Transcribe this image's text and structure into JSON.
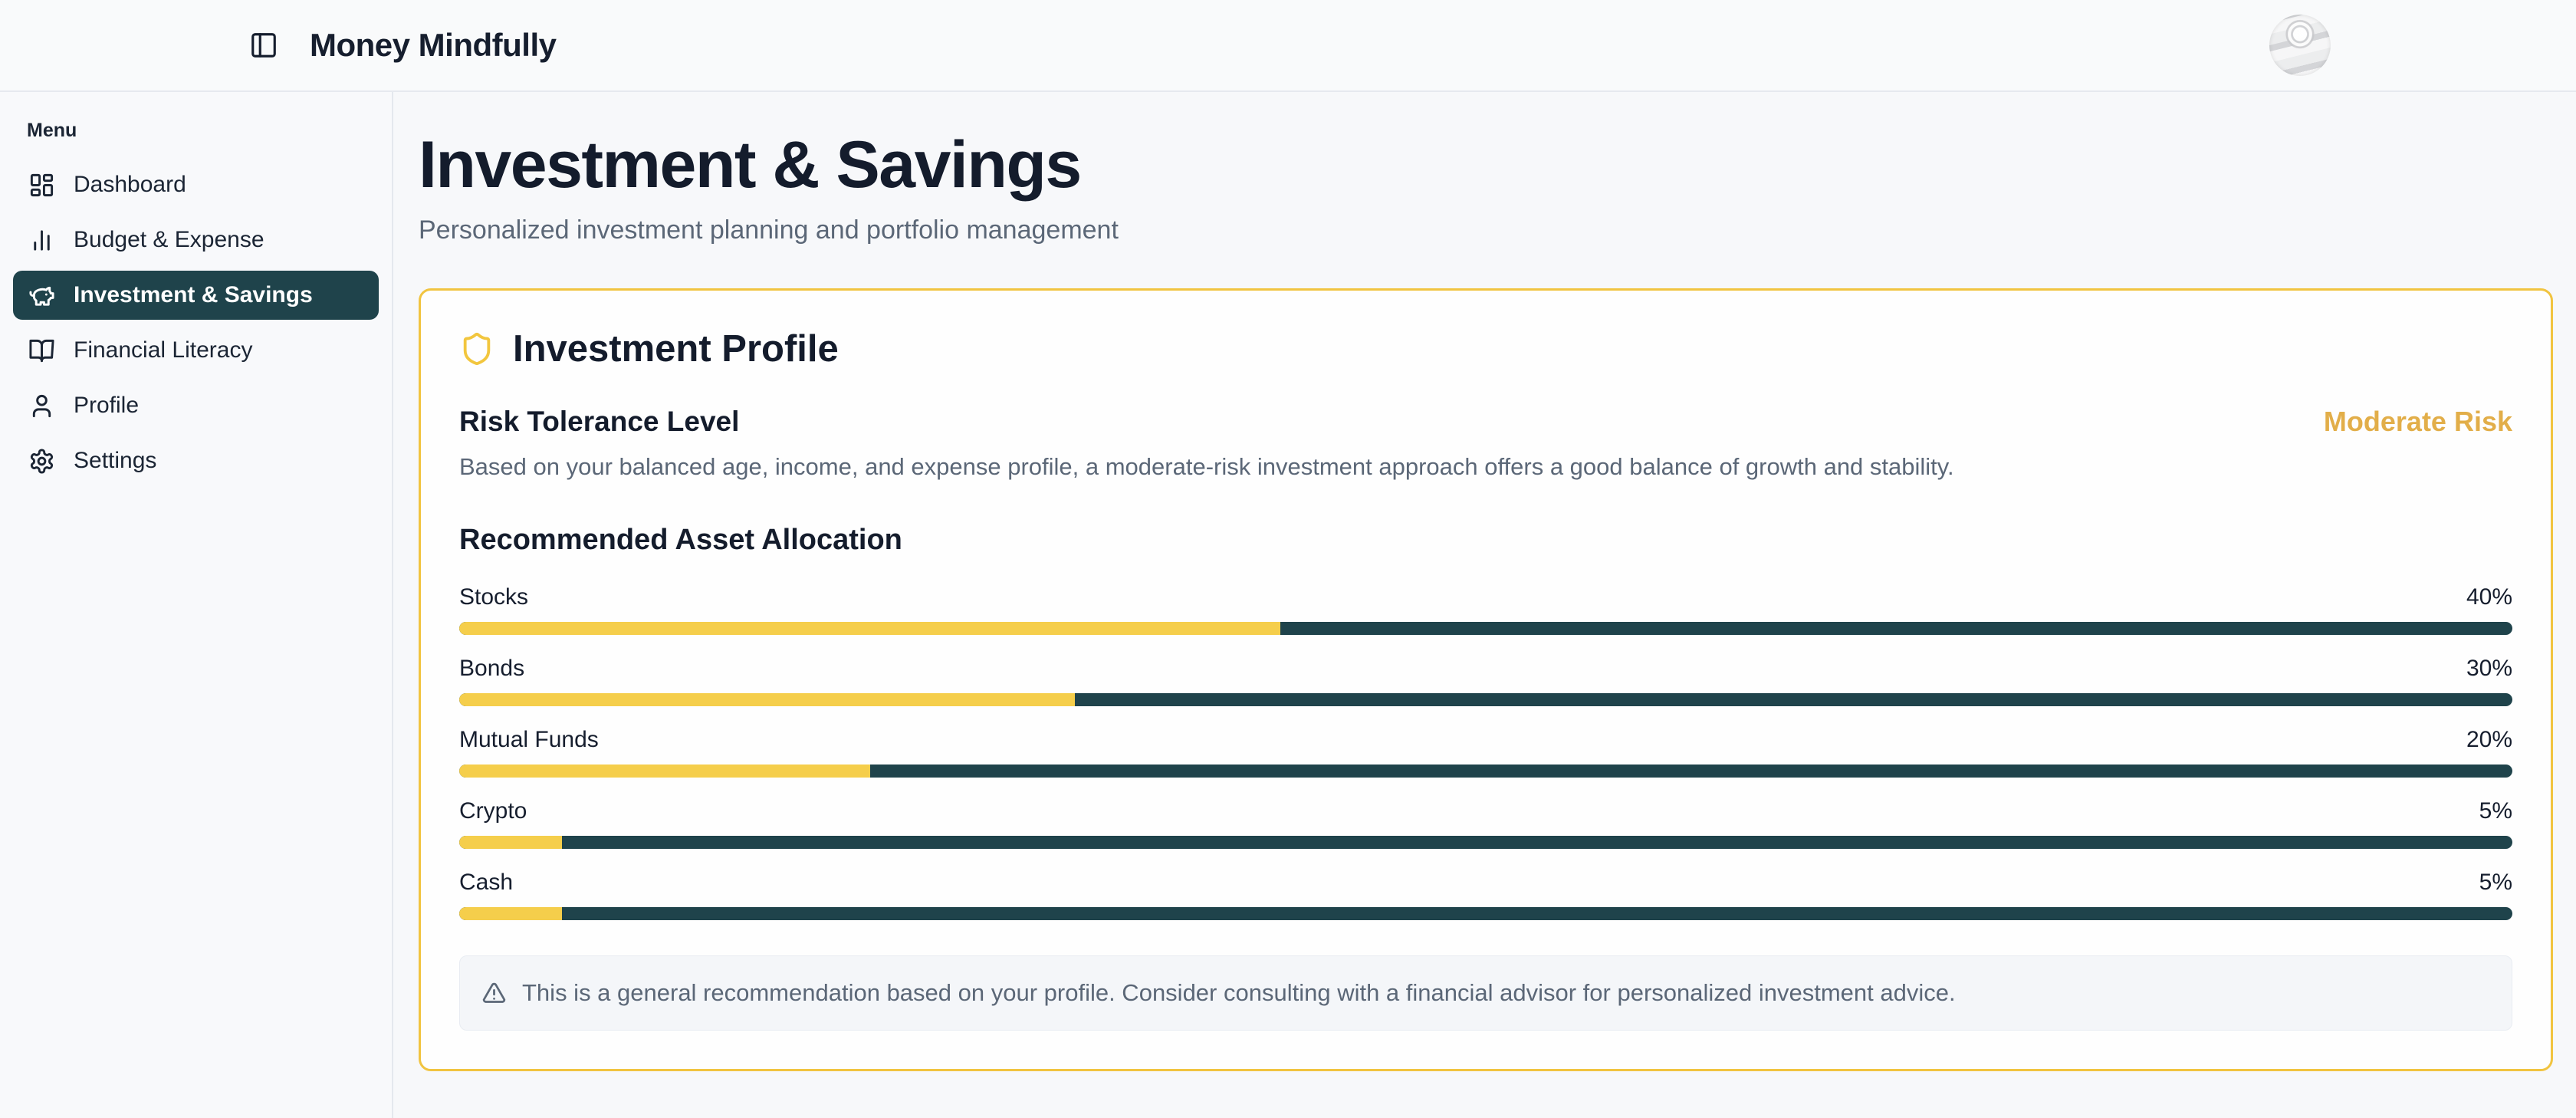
{
  "header": {
    "title": "Money Mindfully",
    "toggle_icon": "panel-left-icon",
    "avatar": "globe-building-photo"
  },
  "sidebar": {
    "menu_label": "Menu",
    "items": [
      {
        "label": "Dashboard",
        "icon": "dashboard-grid-icon",
        "active": false
      },
      {
        "label": "Budget & Expense",
        "icon": "bar-chart-icon",
        "active": false
      },
      {
        "label": "Investment & Savings",
        "icon": "piggy-bank-icon",
        "active": true
      },
      {
        "label": "Financial Literacy",
        "icon": "book-open-icon",
        "active": false
      },
      {
        "label": "Profile",
        "icon": "user-icon",
        "active": false
      },
      {
        "label": "Settings",
        "icon": "gear-icon",
        "active": false
      }
    ]
  },
  "page": {
    "title": "Investment & Savings",
    "subtitle": "Personalized investment planning and portfolio management"
  },
  "card": {
    "title": "Investment Profile",
    "title_icon": "shield-icon",
    "risk": {
      "heading": "Risk Tolerance Level",
      "level": "Moderate Risk",
      "description": "Based on your balanced age, income, and expense profile, a moderate-risk investment approach offers a good balance of growth and stability."
    },
    "note": "This is a general recommendation based on your profile. Consider consulting with a financial advisor for personalized investment advice.",
    "note_icon": "alert-triangle-icon"
  },
  "chart_data": {
    "type": "bar",
    "title": "Recommended Asset Allocation",
    "categories": [
      "Stocks",
      "Bonds",
      "Mutual Funds",
      "Crypto",
      "Cash"
    ],
    "values": [
      40,
      30,
      20,
      5,
      5
    ],
    "labels": [
      "40%",
      "30%",
      "20%",
      "5%",
      "5%"
    ],
    "unit": "%",
    "xlim": [
      0,
      100
    ],
    "legend": false,
    "colors": {
      "fill": "#f5ce4b",
      "track": "#1f434b"
    }
  },
  "colors": {
    "accent_gold": "#f1c440",
    "gold_text": "#e2ae49",
    "teal_dark": "#1f434b",
    "text_dark": "#141c2c",
    "text_gray": "#5b6777",
    "page_bg": "#f7f8fa"
  }
}
